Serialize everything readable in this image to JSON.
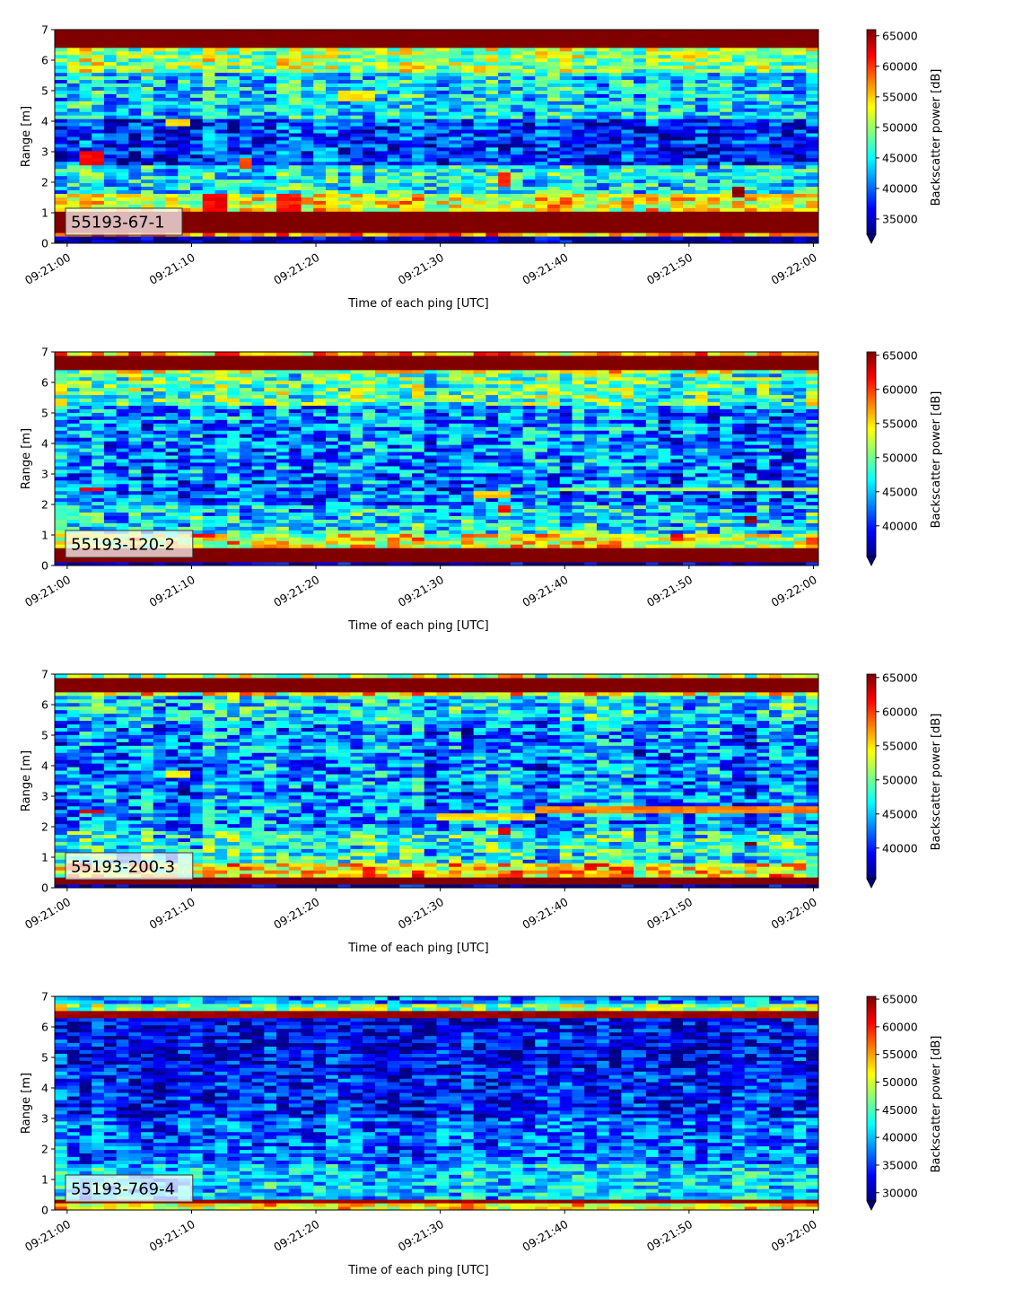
{
  "chart_data": [
    {
      "type": "heatmap",
      "id": "55193-67-1",
      "annotation": "55193-67-1",
      "xlabel": "Time of each ping [UTC]",
      "ylabel": "Range [m]",
      "xticks": [
        "09:21:00",
        "09:21:10",
        "09:21:20",
        "09:21:30",
        "09:21:40",
        "09:21:50",
        "09:22:00"
      ],
      "xlim_seconds": [
        -1,
        60.4
      ],
      "ylim": [
        0,
        7
      ],
      "yticks": [
        0,
        1,
        2,
        3,
        4,
        5,
        6,
        7
      ],
      "colorbar": {
        "label": "Backscatter power [dB]",
        "colormap": "jet",
        "range": [
          32500,
          66000
        ],
        "ticks": [
          35000,
          40000,
          45000,
          50000,
          55000,
          60000,
          65000
        ],
        "extend": "min"
      },
      "bands": [
        {
          "from": 6.45,
          "to": 7.0,
          "level": 66000
        },
        {
          "from": 5.6,
          "to": 6.45,
          "level": 50000
        },
        {
          "from": 4.1,
          "to": 5.6,
          "level": 44000
        },
        {
          "from": 2.6,
          "to": 4.1,
          "level": 38000
        },
        {
          "from": 1.6,
          "to": 2.6,
          "level": 45000
        },
        {
          "from": 1.1,
          "to": 1.6,
          "level": 53000
        },
        {
          "from": 0.3,
          "to": 1.1,
          "level": 66000
        },
        {
          "from": 0.2,
          "to": 0.3,
          "level": 57000
        }
      ],
      "features": [
        {
          "t0": 1,
          "t1": 2.5,
          "y0": 2.55,
          "y1": 3.0,
          "level": 62000
        },
        {
          "t0": 14.3,
          "t1": 15.2,
          "y0": 2.4,
          "y1": 2.8,
          "level": 60000
        },
        {
          "t0": 35,
          "t1": 36,
          "y0": 1.9,
          "y1": 2.3,
          "level": 61000
        },
        {
          "t0": 53,
          "t1": 54,
          "y0": 1.5,
          "y1": 1.9,
          "level": 66000
        },
        {
          "t0": 11,
          "t1": 13,
          "y0": 1.1,
          "y1": 1.6,
          "level": 62000
        },
        {
          "t0": 17,
          "t1": 19,
          "y0": 1.1,
          "y1": 1.6,
          "level": 61000
        },
        {
          "t0": 8,
          "t1": 10,
          "y0": 3.8,
          "y1": 4.1,
          "level": 55000
        },
        {
          "t0": 22,
          "t1": 25,
          "y0": 4.7,
          "y1": 5.0,
          "level": 54000
        }
      ]
    },
    {
      "type": "heatmap",
      "id": "55193-120-2",
      "annotation": "55193-120-2",
      "xlabel": "Time of each ping [UTC]",
      "ylabel": "Range [m]",
      "xticks": [
        "09:21:00",
        "09:21:10",
        "09:21:20",
        "09:21:30",
        "09:21:40",
        "09:21:50",
        "09:22:00"
      ],
      "xlim_seconds": [
        -1,
        60.4
      ],
      "ylim": [
        0,
        7
      ],
      "yticks": [
        0,
        1,
        2,
        3,
        4,
        5,
        6,
        7
      ],
      "colorbar": {
        "label": "Backscatter power [dB]",
        "colormap": "jet",
        "range": [
          35500,
          65500
        ],
        "ticks": [
          40000,
          45000,
          50000,
          55000,
          60000,
          65000
        ],
        "extend": "min"
      },
      "bands": [
        {
          "from": 6.4,
          "to": 6.9,
          "level": 65500
        },
        {
          "from": 6.9,
          "to": 7.0,
          "level": 56000
        },
        {
          "from": 6.25,
          "to": 6.4,
          "level": 52000
        },
        {
          "from": 5.2,
          "to": 6.25,
          "level": 49000
        },
        {
          "from": 3.0,
          "to": 5.2,
          "level": 43000
        },
        {
          "from": 2.0,
          "to": 3.0,
          "level": 42000
        },
        {
          "from": 1.0,
          "to": 2.0,
          "level": 46000
        },
        {
          "from": 0.6,
          "to": 1.0,
          "level": 53000
        },
        {
          "from": 0.1,
          "to": 0.6,
          "level": 65500
        }
      ],
      "features": [
        {
          "t0": 1,
          "t1": 2.5,
          "y0": 2.4,
          "y1": 2.6,
          "level": 62000
        },
        {
          "t0": 33,
          "t1": 36,
          "y0": 2.25,
          "y1": 2.4,
          "level": 56000
        },
        {
          "t0": 40,
          "t1": 60,
          "y0": 2.45,
          "y1": 2.6,
          "level": 52000
        },
        {
          "t0": 35,
          "t1": 36,
          "y0": 1.8,
          "y1": 1.95,
          "level": 62000
        },
        {
          "t0": 54,
          "t1": 55,
          "y0": 1.4,
          "y1": 1.6,
          "level": 65000
        },
        {
          "t0": 49,
          "t1": 50,
          "y0": 0.85,
          "y1": 1.0,
          "level": 62000
        },
        {
          "t0": 10,
          "t1": 12,
          "y0": 0.9,
          "y1": 1.1,
          "level": 62000
        }
      ]
    },
    {
      "type": "heatmap",
      "id": "55193-200-3",
      "annotation": "55193-200-3",
      "xlabel": "Time of each ping [UTC]",
      "ylabel": "Range [m]",
      "xticks": [
        "09:21:00",
        "09:21:10",
        "09:21:20",
        "09:21:30",
        "09:21:40",
        "09:21:50",
        "09:22:00"
      ],
      "xlim_seconds": [
        -1,
        60.4
      ],
      "ylim": [
        0,
        7
      ],
      "yticks": [
        0,
        1,
        2,
        3,
        4,
        5,
        6,
        7
      ],
      "colorbar": {
        "label": "Backscatter power [dB]",
        "colormap": "jet",
        "range": [
          35500,
          65500
        ],
        "ticks": [
          40000,
          45000,
          50000,
          55000,
          60000,
          65000
        ],
        "extend": "min"
      },
      "bands": [
        {
          "from": 6.85,
          "to": 7.0,
          "level": 52000
        },
        {
          "from": 6.45,
          "to": 6.85,
          "level": 65500
        },
        {
          "from": 6.3,
          "to": 6.45,
          "level": 54000
        },
        {
          "from": 5.5,
          "to": 6.3,
          "level": 46000
        },
        {
          "from": 3.2,
          "to": 5.5,
          "level": 43000
        },
        {
          "from": 1.9,
          "to": 3.2,
          "level": 43000
        },
        {
          "from": 0.8,
          "to": 1.9,
          "level": 47000
        },
        {
          "from": 0.4,
          "to": 0.8,
          "level": 55000
        },
        {
          "from": 0.15,
          "to": 0.4,
          "level": 65500
        }
      ],
      "features": [
        {
          "t0": 1,
          "t1": 2.5,
          "y0": 2.4,
          "y1": 2.6,
          "level": 62000
        },
        {
          "t0": 30,
          "t1": 38,
          "y0": 2.25,
          "y1": 2.4,
          "level": 55000
        },
        {
          "t0": 38,
          "t1": 60,
          "y0": 2.45,
          "y1": 2.65,
          "level": 58000
        },
        {
          "t0": 35,
          "t1": 36,
          "y0": 1.75,
          "y1": 1.95,
          "level": 62000
        },
        {
          "t0": 54,
          "t1": 55,
          "y0": 1.4,
          "y1": 1.55,
          "level": 66000
        },
        {
          "t0": 7.5,
          "t1": 9.5,
          "y0": 3.6,
          "y1": 3.8,
          "level": 54000
        }
      ]
    },
    {
      "type": "heatmap",
      "id": "55193-769-4",
      "annotation": "55193-769-4",
      "xlabel": "Time of each ping [UTC]",
      "ylabel": "Range [m]",
      "xticks": [
        "09:21:00",
        "09:21:10",
        "09:21:20",
        "09:21:30",
        "09:21:40",
        "09:21:50",
        "09:22:00"
      ],
      "xlim_seconds": [
        -1,
        60.4
      ],
      "ylim": [
        0,
        7
      ],
      "yticks": [
        0,
        1,
        2,
        3,
        4,
        5,
        6,
        7
      ],
      "colorbar": {
        "label": "Backscatter power [dB]",
        "colormap": "jet",
        "range": [
          28500,
          65500
        ],
        "ticks": [
          30000,
          35000,
          40000,
          45000,
          50000,
          55000,
          60000,
          65000
        ],
        "extend": "min"
      },
      "bands": [
        {
          "from": 6.8,
          "to": 7.0,
          "level": 38000
        },
        {
          "from": 6.5,
          "to": 6.8,
          "level": 48000
        },
        {
          "from": 6.3,
          "to": 6.5,
          "level": 64000
        },
        {
          "from": 4.5,
          "to": 6.3,
          "level": 33000
        },
        {
          "from": 3.0,
          "to": 4.5,
          "level": 34000
        },
        {
          "from": 1.5,
          "to": 3.0,
          "level": 37000
        },
        {
          "from": 0.35,
          "to": 1.5,
          "level": 41000
        },
        {
          "from": 0.2,
          "to": 0.35,
          "level": 64000
        },
        {
          "from": 0.0,
          "to": 0.2,
          "level": 52000
        }
      ],
      "features": []
    }
  ]
}
